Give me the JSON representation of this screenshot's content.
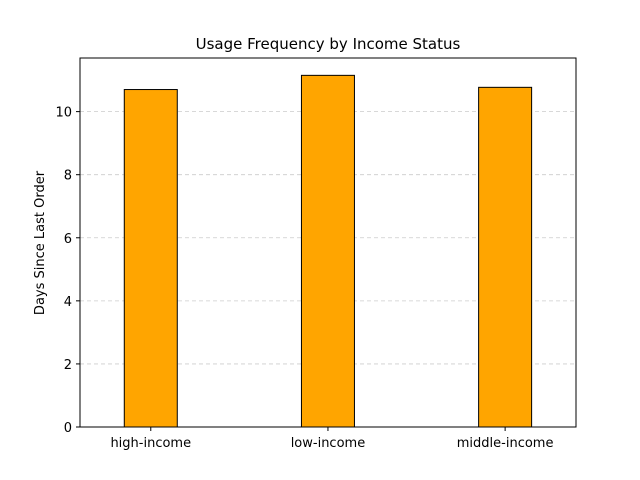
{
  "chart_data": {
    "type": "bar",
    "title": "Usage Frequency by Income Status",
    "xlabel": "",
    "ylabel": "Days Since Last Order",
    "categories": [
      "high-income",
      "low-income",
      "middle-income"
    ],
    "values": [
      10.7,
      11.15,
      10.77
    ],
    "ylim": [
      0,
      11.7
    ],
    "yticks": [
      0,
      2,
      4,
      6,
      8,
      10
    ],
    "grid": "y-dashed",
    "colors": {
      "bar_fill": "#FFA500",
      "bar_edge": "#000000",
      "grid": "#cccccc"
    }
  }
}
